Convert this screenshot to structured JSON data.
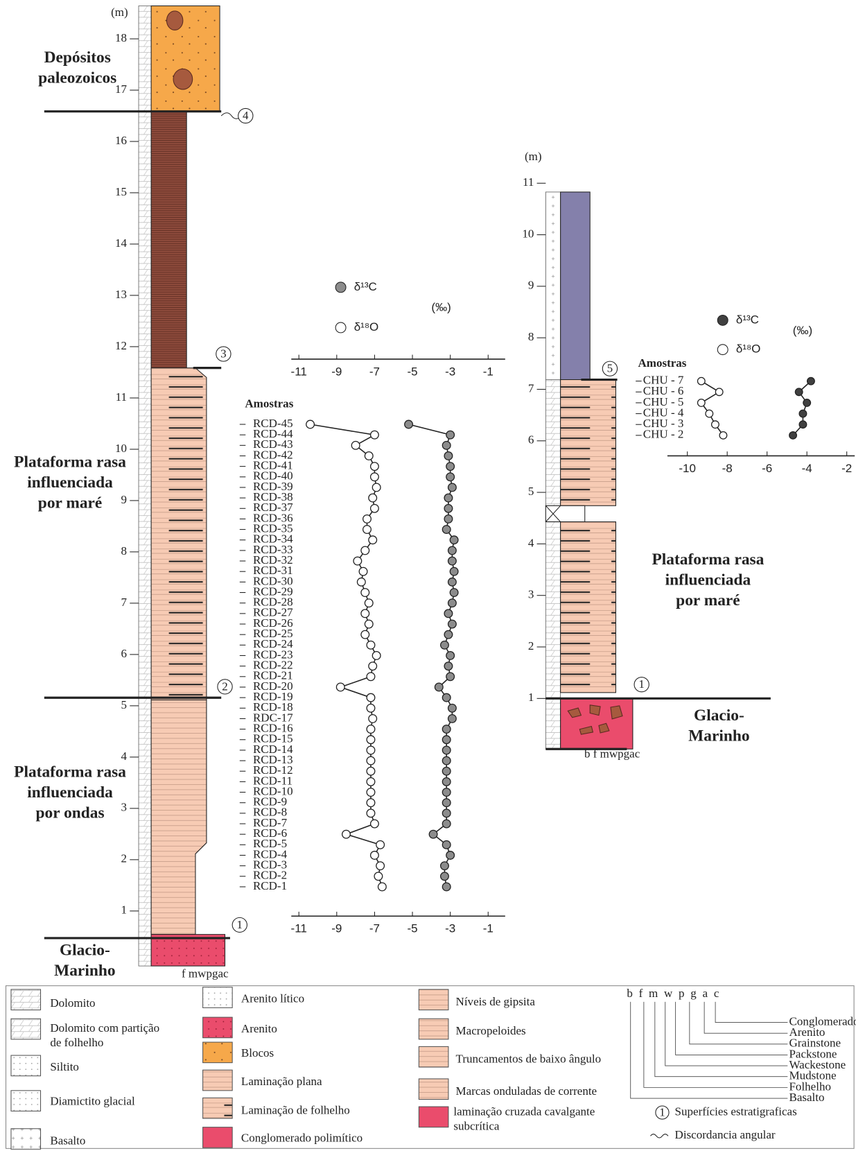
{
  "columns": [
    {
      "unit": "(m)",
      "ticks": [
        1,
        2,
        3,
        4,
        5,
        6,
        7,
        8,
        9,
        10,
        11,
        12,
        13,
        14,
        15,
        16,
        17,
        18
      ],
      "facies": [
        {
          "lines": [
            "Depósitos",
            "paleozoicos"
          ]
        },
        {
          "lines": [
            "Plataforma rasa",
            "influenciada",
            "por maré"
          ]
        },
        {
          "lines": [
            "Plataforma rasa",
            "influenciada",
            "por ondas"
          ]
        },
        {
          "lines": [
            "Glacio-",
            "Marinho"
          ]
        }
      ],
      "surfaces": [
        "4",
        "3",
        "2",
        "1"
      ],
      "grain_labels": "f mwpgac"
    },
    {
      "unit": "(m)",
      "ticks": [
        1,
        2,
        3,
        4,
        5,
        6,
        7,
        8,
        9,
        10,
        11
      ],
      "facies": [
        {
          "lines": [
            "Plataforma rasa",
            "influenciada",
            "por maré"
          ]
        },
        {
          "lines": [
            "Glacio-",
            "Marinho"
          ]
        }
      ],
      "surfaces": [
        "5",
        "1"
      ],
      "grain_labels": "b f mwpgac"
    }
  ],
  "chart_data": [
    {
      "type": "line",
      "categories_label": "Amostras",
      "unit": "(‰)",
      "categories": [
        "RCD-45",
        "RCD-44",
        "RCD-43",
        "RCD-42",
        "RCD-41",
        "RCD-40",
        "RCD-39",
        "RCD-38",
        "RCD-37",
        "RCD-36",
        "RCD-35",
        "RCD-34",
        "RCD-33",
        "RCD-32",
        "RCD-31",
        "RCD-30",
        "RCD-29",
        "RCD-28",
        "RCD-27",
        "RCD-26",
        "RCD-25",
        "RCD-24",
        "RCD-23",
        "RCD-22",
        "RCD-21",
        "RCD-20",
        "RCD-19",
        "RCD-18",
        "RDC-17",
        "RCD-16",
        "RCD-15",
        "RCD-14",
        "RCD-13",
        "RCD-12",
        "RCD-11",
        "RCD-10",
        "RCD-9",
        "RCD-8",
        "RCD-7",
        "RCD-6",
        "RCD-5",
        "RCD-4",
        "RCD-3",
        "RCD-2",
        "RCD-1"
      ],
      "series": [
        {
          "name": "δ¹³C",
          "color": "#8c8c8c",
          "values": [
            -5.2,
            -3.0,
            -3.2,
            -3.1,
            -3.0,
            -3.0,
            -2.9,
            -3.1,
            -3.1,
            -3.1,
            -3.2,
            -2.8,
            -2.9,
            -2.9,
            -2.8,
            -2.9,
            -2.8,
            -2.9,
            -3.1,
            -2.9,
            -3.1,
            -3.3,
            -3.0,
            -3.1,
            -3.0,
            -3.6,
            -3.2,
            -2.9,
            -2.9,
            -3.2,
            -3.2,
            -3.2,
            -3.2,
            -3.2,
            -3.2,
            -3.2,
            -3.2,
            -3.2,
            -3.2,
            -3.9,
            -3.2,
            -3.0,
            -3.3,
            -3.3,
            -3.2
          ]
        },
        {
          "name": "δ¹⁸O",
          "color": "#ffffff",
          "values": [
            -10.4,
            -7.0,
            -8.0,
            -7.3,
            -7.0,
            -7.0,
            -6.9,
            -7.1,
            -7.0,
            -7.4,
            -7.4,
            -7.1,
            -7.5,
            -7.9,
            -7.6,
            -7.7,
            -7.5,
            -7.3,
            -7.5,
            -7.3,
            -7.5,
            -7.2,
            -6.9,
            -7.1,
            -7.2,
            -8.8,
            -7.2,
            -7.2,
            -7.1,
            -7.2,
            -7.2,
            -7.2,
            -7.2,
            -7.2,
            -7.2,
            -7.2,
            -7.2,
            -7.2,
            -7.0,
            -8.5,
            -6.7,
            -7.0,
            -6.7,
            -6.8,
            -6.6
          ]
        }
      ],
      "xlim": [
        -11.4,
        -0.1
      ],
      "xticks": [
        -11,
        -9,
        -7,
        -5,
        -3,
        -1
      ]
    },
    {
      "type": "line",
      "categories_label": "Amostras",
      "unit": "(‰)",
      "categories": [
        "CHU - 7",
        "CHU - 6",
        "CHU - 5",
        "CHU - 4",
        "CHU - 3",
        "CHU - 2"
      ],
      "series": [
        {
          "name": "δ¹³C",
          "color": "#404040",
          "values": [
            -3.8,
            -4.4,
            -4.0,
            -4.2,
            -4.2,
            -4.7
          ]
        },
        {
          "name": "δ¹⁸O",
          "color": "#ffffff",
          "values": [
            -9.3,
            -8.4,
            -9.3,
            -8.9,
            -8.6,
            -8.2
          ]
        }
      ],
      "xlim": [
        -11,
        -1.6
      ],
      "xticks": [
        -10,
        -8,
        -6,
        -4,
        -2
      ]
    }
  ],
  "legend": {
    "lithology": [
      {
        "lines": [
          "Dolomito"
        ]
      },
      {
        "lines": [
          "Dolomito com partição",
          "de folhelho"
        ]
      },
      {
        "lines": [
          "Siltito"
        ]
      },
      {
        "lines": [
          "Diamictito glacial"
        ]
      },
      {
        "lines": [
          "Basalto"
        ]
      },
      {
        "lines": [
          "Arenito lítico"
        ]
      },
      {
        "lines": [
          "Arenito"
        ]
      },
      {
        "lines": [
          "Blocos"
        ]
      },
      {
        "lines": [
          "Laminação plana"
        ]
      },
      {
        "lines": [
          "Laminação de folhelho"
        ]
      },
      {
        "lines": [
          "Conglomerado polimítico"
        ]
      },
      {
        "lines": [
          "Níveis de gipsita"
        ]
      },
      {
        "lines": [
          "Macropeloides"
        ]
      },
      {
        "lines": [
          "Truncamentos de baixo ângulo"
        ]
      },
      {
        "lines": [
          "Marcas onduladas de corrente"
        ]
      },
      {
        "lines": [
          "laminação cruzada cavalgante",
          "subcrítica"
        ]
      }
    ],
    "grain_scale": "b f m w p g a c",
    "grain_names": [
      "Conglomerado",
      "Arenito",
      "Grainstone",
      "Packstone",
      "Wackestone",
      "Mudstone",
      "Folhelho",
      "Basalto"
    ],
    "surface_symbol": "1",
    "surfaces": "Superfícies estratigraficas",
    "unconformity": "Discordancia angular"
  }
}
